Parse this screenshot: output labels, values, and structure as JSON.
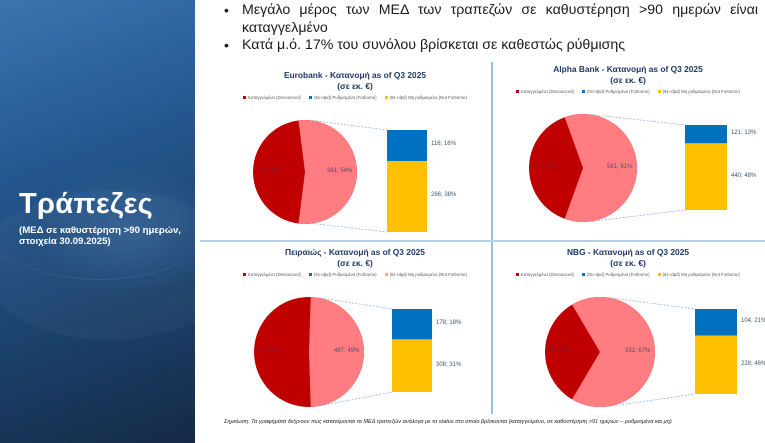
{
  "sidebar": {
    "title": "Τράπεζες",
    "subtitle": "(ΜΕΔ σε καθυστέρηση >90 ημερών, στοιχεία 30.09.2025)"
  },
  "bullets": [
    "Μεγάλο μέρος των ΜΕΔ των τραπεζών σε καθυστέρηση >90 ημερών είναι καταγγελμένο",
    "Κατά μ.ό. 17% του συνόλου βρίσκεται σε καθεστώς ρύθμισης"
  ],
  "legend": {
    "denounced": "Καταγγελμένα (Denounced)",
    "forborne": "(91+dpd) Ρυθμισμένα (Forborne)",
    "not_forborne": "(91+dpd) Μη ρυθμισμένα (Not Forborne)"
  },
  "colors": {
    "denounced": "#c00000",
    "past_due_total": "#ff7c80",
    "forborne": "#0070c0",
    "not_forborne": "#ffc000",
    "title": "#1f3864",
    "divider": "#9dc0e6"
  },
  "chart_data": [
    {
      "type": "pie",
      "title": "Eurobank - Κατανομή as of Q3 2025",
      "subtitle": "(σε εκ. €)",
      "pie_slices": [
        {
          "name": "Καταγγελμένα (Denounced)",
          "value": 325,
          "percent": 46,
          "label": "325; 46%",
          "label_legible": false
        },
        {
          "name": "91+dpd (Forborne + Not Forborne)",
          "value": 381,
          "percent": 54,
          "label": "381; 54%"
        }
      ],
      "bar_breakdown": [
        {
          "name": "(91+dpd) Ρυθμισμένα (Forborne)",
          "value": 116,
          "percent": 16,
          "label": "116; 16%"
        },
        {
          "name": "(91+dpd) Μη ρυθμισμένα (Not Forborne)",
          "value": 266,
          "percent": 38,
          "label": "266; 38%"
        }
      ],
      "legend_position": "top"
    },
    {
      "type": "pie",
      "title": "Alpha Bank - Κατανομή as of Q3 2025",
      "subtitle": "(σε εκ. €)",
      "pie_slices": [
        {
          "name": "Καταγγελμένα (Denounced)",
          "value": 359,
          "percent": 39,
          "label": "359; 39%",
          "label_legible": false
        },
        {
          "name": "91+dpd (Forborne + Not Forborne)",
          "value": 561,
          "percent": 61,
          "label": "561; 61%"
        }
      ],
      "bar_breakdown": [
        {
          "name": "(91+dpd) Ρυθμισμένα (Forborne)",
          "value": 121,
          "percent": 13,
          "label": "121; 13%"
        },
        {
          "name": "(91+dpd) Μη ρυθμισμένα (Not Forborne)",
          "value": 440,
          "percent": 48,
          "label": "440; 48%"
        }
      ],
      "legend_position": "top"
    },
    {
      "type": "pie",
      "title": "Πειραιώς - Κατανομή as of Q3 2025",
      "subtitle": "(σε εκ. €)",
      "pie_slices": [
        {
          "name": "Καταγγελμένα (Denounced)",
          "value": 507,
          "percent": 51,
          "label": "507; 51%",
          "label_legible": false
        },
        {
          "name": "91+dpd (Forborne + Not Forborne)",
          "value": 487,
          "percent": 49,
          "label": "487; 49%"
        }
      ],
      "bar_breakdown": [
        {
          "name": "(91+dpd) Ρυθμισμένα (Forborne)",
          "value": 178,
          "percent": 18,
          "label": "178; 18%"
        },
        {
          "name": "(91+dpd) Μη ρυθμισμένα (Not Forborne)",
          "value": 308,
          "percent": 31,
          "label": "308; 31%"
        }
      ],
      "legend_position": "top"
    },
    {
      "type": "pie",
      "title": "NBG - Κατανομή as of Q3 2025",
      "subtitle": "(σε εκ. €)",
      "pie_slices": [
        {
          "name": "Καταγγελμένα (Denounced)",
          "value": 163,
          "percent": 33,
          "label": "163; 33%",
          "label_legible": false
        },
        {
          "name": "91+dpd (Forborne + Not Forborne)",
          "value": 331,
          "percent": 67,
          "label": "331; 67%"
        }
      ],
      "bar_breakdown": [
        {
          "name": "(91+dpd) Ρυθμισμένα (Forborne)",
          "value": 104,
          "percent": 21,
          "label": "104; 21%"
        },
        {
          "name": "(91+dpd) Μη ρυθμισμένα (Not Forborne)",
          "value": 228,
          "percent": 46,
          "label": "228; 46%"
        }
      ],
      "legend_position": "top"
    }
  ],
  "footnote": "Σημείωση: Τα γραφήματα δείχνουν πώς κατανέμονται τα ΜΕΔ τραπεζών ανάλογα με το status στο οποίο βρίσκονται (καταγγελμένο, σε καθυστέρηση >91 ημερών – ρυθμισμένα και μη)"
}
